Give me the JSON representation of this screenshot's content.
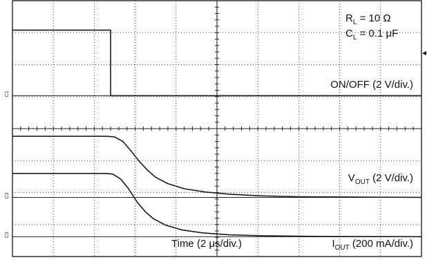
{
  "chart_data": {
    "type": "line",
    "title": "",
    "annotations": {
      "rl": {
        "prefix": "R",
        "sub": "L",
        "suffix": " = 10 Ω"
      },
      "cl": {
        "prefix": "C",
        "sub": "L",
        "suffix": " = 0.1 μF"
      }
    },
    "x_axis": {
      "label": "Time (2 μs/div.)",
      "unit": "μs",
      "per_div": 2,
      "divisions": 10,
      "range": [
        0,
        20
      ]
    },
    "grid": true,
    "series": [
      {
        "name": "ON/OFF",
        "label": {
          "prefix": "ON/OFF (2 V/div.)",
          "sub": "",
          "suffix": ""
        },
        "channel_mark": "C1",
        "high_div": 7.08,
        "low_div": 5.03,
        "points": [
          [
            0,
            7.08
          ],
          [
            4.8,
            7.08
          ],
          [
            4.8,
            5.03
          ],
          [
            20,
            5.03
          ]
        ]
      },
      {
        "name": "VOUT",
        "label": {
          "prefix": "V",
          "sub": "OUT",
          "suffix": " (2 V/div.)"
        },
        "channel_mark": "C3",
        "high_div": 3.76,
        "low_div": 1.85,
        "points": [
          [
            0,
            3.76
          ],
          [
            4.6,
            3.76
          ],
          [
            5.0,
            3.74
          ],
          [
            5.4,
            3.6
          ],
          [
            5.8,
            3.3
          ],
          [
            6.2,
            2.98
          ],
          [
            6.6,
            2.7
          ],
          [
            7.0,
            2.48
          ],
          [
            7.6,
            2.28
          ],
          [
            8.4,
            2.12
          ],
          [
            9.4,
            2.02
          ],
          [
            10.6,
            1.95
          ],
          [
            12.0,
            1.9
          ],
          [
            14.0,
            1.87
          ],
          [
            17.0,
            1.86
          ],
          [
            20,
            1.85
          ]
        ]
      },
      {
        "name": "IOUT",
        "label": {
          "prefix": "I",
          "sub": "OUT",
          "suffix": " (200 mA/div.)"
        },
        "channel_mark": "C3",
        "high_div": 2.6,
        "low_div": 0.62,
        "points": [
          [
            0,
            2.6
          ],
          [
            4.5,
            2.6
          ],
          [
            4.9,
            2.58
          ],
          [
            5.3,
            2.42
          ],
          [
            5.7,
            2.1
          ],
          [
            6.1,
            1.7
          ],
          [
            6.5,
            1.4
          ],
          [
            6.9,
            1.18
          ],
          [
            7.5,
            0.98
          ],
          [
            8.3,
            0.83
          ],
          [
            9.3,
            0.74
          ],
          [
            10.6,
            0.68
          ],
          [
            12.2,
            0.65
          ],
          [
            15.0,
            0.63
          ],
          [
            20,
            0.62
          ]
        ]
      }
    ]
  }
}
